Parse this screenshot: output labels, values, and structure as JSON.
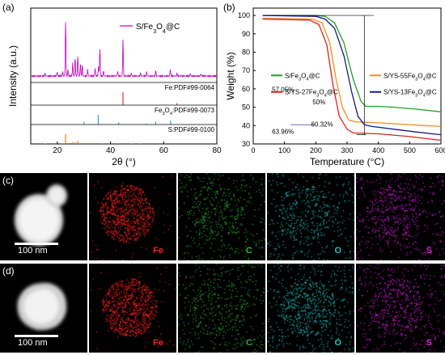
{
  "panels": {
    "a": "(a)",
    "b": "(b)",
    "c": "(c)",
    "d": "(d)"
  },
  "chart_data": [
    {
      "type": "line",
      "panel": "(a)",
      "xlabel": "2θ (°)",
      "ylabel": "Intensity (a.u.)",
      "xlim": [
        10,
        80
      ],
      "xticks": [
        20,
        40,
        60,
        80
      ],
      "legend": "S/Fe3O4@C",
      "reference_labels": [
        "Fe:PDF#99-0064",
        "Fe3O4:PDF#99-0073",
        "S:PDF#99-0100"
      ],
      "series": [
        {
          "name": "S/Fe3O4@C",
          "color": "#c000c0",
          "baseline": 0,
          "peaks": [
            [
              15.4,
              0.05
            ],
            [
              19.9,
              0.07
            ],
            [
              22.0,
              0.08
            ],
            [
              23.1,
              1.0
            ],
            [
              24.0,
              0.12
            ],
            [
              25.8,
              0.25
            ],
            [
              26.7,
              0.33
            ],
            [
              27.7,
              0.36
            ],
            [
              28.7,
              0.22
            ],
            [
              29.4,
              0.2
            ],
            [
              31.4,
              0.12
            ],
            [
              34.2,
              0.14
            ],
            [
              35.5,
              0.18
            ],
            [
              36.0,
              0.5
            ],
            [
              37.4,
              0.1
            ],
            [
              42.7,
              0.08
            ],
            [
              44.7,
              0.68
            ],
            [
              47.8,
              0.06
            ],
            [
              51.3,
              0.06
            ],
            [
              53.6,
              0.08
            ],
            [
              57.0,
              0.1
            ],
            [
              62.5,
              0.12
            ],
            [
              65.0,
              0.05
            ],
            [
              70.0,
              0.04
            ],
            [
              74.0,
              0.04
            ]
          ]
        }
      ],
      "references": [
        {
          "label": "Fe:PDF#99-0064",
          "color": "#e03030",
          "lines": [
            [
              44.7,
              1.0
            ],
            [
              65.0,
              0.15
            ]
          ]
        },
        {
          "label": "Fe3O4:PDF#99-0073",
          "color": "#30a0e0",
          "lines": [
            [
              30.1,
              0.3
            ],
            [
              35.4,
              1.0
            ],
            [
              43.1,
              0.2
            ],
            [
              53.4,
              0.1
            ],
            [
              57.0,
              0.3
            ],
            [
              62.6,
              0.4
            ]
          ]
        },
        {
          "label": "S:PDF#99-0100",
          "color": "#e08010",
          "lines": [
            [
              15.4,
              0.05
            ],
            [
              21.9,
              0.05
            ],
            [
              23.1,
              1.0
            ],
            [
              25.8,
              0.2
            ],
            [
              26.7,
              0.15
            ],
            [
              27.7,
              0.3
            ],
            [
              28.7,
              0.1
            ],
            [
              31.4,
              0.08
            ],
            [
              34.2,
              0.1
            ],
            [
              37.0,
              0.05
            ],
            [
              42.7,
              0.06
            ],
            [
              47.8,
              0.05
            ],
            [
              51.3,
              0.05
            ]
          ]
        }
      ]
    },
    {
      "type": "line",
      "panel": "(b)",
      "xlabel": "Temperature (°C)",
      "ylabel": "Weight (%)",
      "xlim": [
        0,
        600
      ],
      "ylim": [
        30,
        104
      ],
      "xticks": [
        0,
        100,
        200,
        300,
        400,
        500,
        600
      ],
      "yticks": [
        30,
        40,
        50,
        60,
        70,
        80,
        90,
        100
      ],
      "annotations": [
        "50%",
        "57.05%",
        "60.32%",
        "63.96%"
      ],
      "series": [
        {
          "name": "S/Fe3O4@C",
          "color": "#20a020",
          "points": [
            [
              30,
              100
            ],
            [
              200,
              100
            ],
            [
              230,
              99.5
            ],
            [
              260,
              96
            ],
            [
              290,
              85
            ],
            [
              320,
              65
            ],
            [
              345,
              53
            ],
            [
              360,
              50.5
            ],
            [
              400,
              50.5
            ],
            [
              450,
              50
            ],
            [
              520,
              49
            ],
            [
              600,
              47.5
            ]
          ]
        },
        {
          "name": "S/YS-55Fe3O4@C",
          "color": "#f09020",
          "points": [
            [
              30,
              98.5
            ],
            [
              190,
              98
            ],
            [
              220,
              96
            ],
            [
              245,
              85
            ],
            [
              265,
              65
            ],
            [
              285,
              50
            ],
            [
              305,
              43
            ],
            [
              330,
              42
            ],
            [
              400,
              41.5
            ],
            [
              500,
              40.5
            ],
            [
              600,
              39.5
            ]
          ]
        },
        {
          "name": "S/YS-27Fe3O4@C",
          "color": "#e02020",
          "points": [
            [
              30,
              98
            ],
            [
              180,
              97.5
            ],
            [
              210,
              95
            ],
            [
              235,
              84
            ],
            [
              255,
              62
            ],
            [
              275,
              45
            ],
            [
              300,
              38
            ],
            [
              320,
              36
            ],
            [
              400,
              35.5
            ],
            [
              500,
              34
            ],
            [
              600,
              32
            ]
          ]
        },
        {
          "name": "S/YS-13Fe3O4@C",
          "color": "#1a1a80",
          "points": [
            [
              30,
              100
            ],
            [
              200,
              99.5
            ],
            [
              230,
              98
            ],
            [
              260,
              93
            ],
            [
              290,
              78
            ],
            [
              315,
              58
            ],
            [
              335,
              45
            ],
            [
              355,
              40.5
            ],
            [
              380,
              39.5
            ],
            [
              450,
              38
            ],
            [
              520,
              36.5
            ],
            [
              600,
              35
            ]
          ]
        }
      ]
    }
  ],
  "micrographs": {
    "rows": [
      {
        "id": "c",
        "scale": "100 nm",
        "elements": [
          "Fe",
          "C",
          "O",
          "S"
        ]
      },
      {
        "id": "d",
        "scale": "100 nm",
        "elements": [
          "Fe",
          "C",
          "O",
          "S"
        ]
      }
    ],
    "element_colors": {
      "Fe": "#ff2020",
      "C": "#30b030",
      "O": "#20c0c0",
      "S": "#e020e0"
    }
  }
}
